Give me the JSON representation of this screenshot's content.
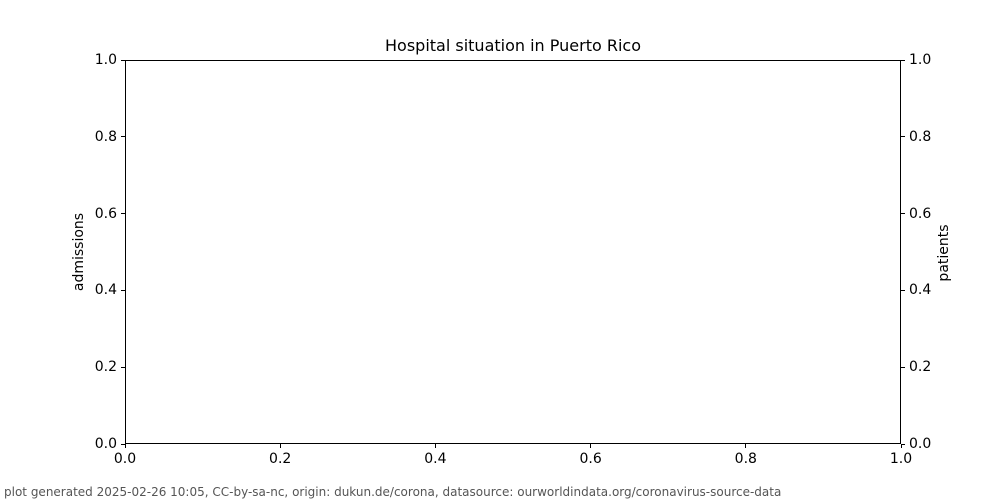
{
  "chart_data": {
    "type": "line",
    "title": "Hospital situation in Puerto Rico",
    "xlabel": "",
    "ylabel_left": "admissions",
    "ylabel_right": "patients",
    "xlim": [
      0.0,
      1.0
    ],
    "ylim_left": [
      0.0,
      1.0
    ],
    "ylim_right": [
      0.0,
      1.0
    ],
    "x_ticks": [
      "0.0",
      "0.2",
      "0.4",
      "0.6",
      "0.8",
      "1.0"
    ],
    "y_left_ticks": [
      "0.0",
      "0.2",
      "0.4",
      "0.6",
      "0.8",
      "1.0"
    ],
    "y_right_ticks": [
      "0.0",
      "0.2",
      "0.4",
      "0.6",
      "0.8",
      "1.0"
    ],
    "grid": false,
    "legend": null,
    "series": []
  },
  "footer": {
    "text": "plot generated 2025-02-26 10:05, CC-by-sa-nc, origin: dukun.de/corona, datasource: ourworldindata.org/coronavirus-source-data"
  },
  "colors": {
    "background": "#ffffff",
    "spine": "#000000",
    "text": "#000000",
    "footer_text": "#555555"
  }
}
